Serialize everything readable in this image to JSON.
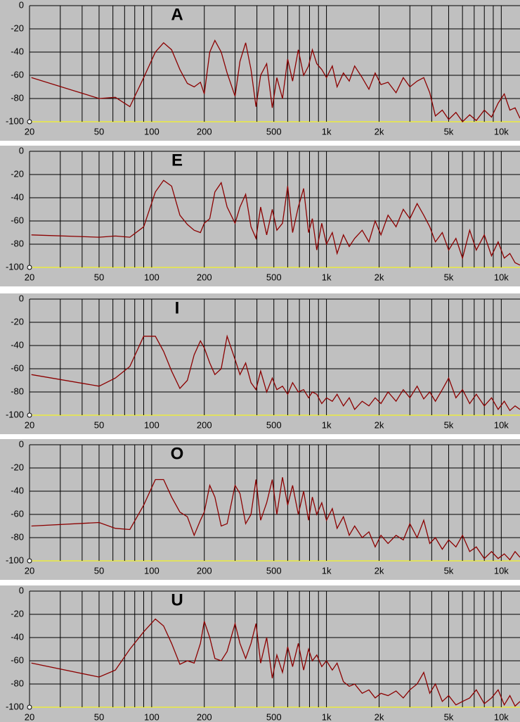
{
  "chart_data": [
    {
      "type": "line",
      "title": "A",
      "color": "#8b0000",
      "xscale": "log",
      "grid": true,
      "xlim": [
        20,
        12800
      ],
      "ylim": [
        -100,
        0
      ],
      "xticks": [
        20,
        50,
        100,
        200,
        500,
        {
          "value": 1000,
          "label": "1k"
        },
        {
          "value": 2000,
          "label": "2k"
        },
        {
          "value": 5000,
          "label": "5k"
        },
        {
          "value": 10000,
          "label": "10k"
        }
      ],
      "xminor_ticks": [
        30,
        40,
        60,
        70,
        80,
        90,
        300,
        400,
        600,
        700,
        800,
        900,
        3000,
        4000,
        6000,
        7000,
        8000,
        9000
      ],
      "yticks": [
        0,
        -20,
        -40,
        -60,
        -80,
        -100
      ],
      "x": [
        20.5,
        50,
        62,
        75,
        90,
        105,
        117,
        130,
        145,
        160,
        175,
        190,
        200,
        215,
        230,
        250,
        270,
        300,
        320,
        345,
        370,
        395,
        420,
        455,
        490,
        520,
        560,
        600,
        640,
        690,
        740,
        790,
        830,
        880,
        940,
        1000,
        1080,
        1150,
        1250,
        1350,
        1450,
        1600,
        1750,
        1900,
        2050,
        2250,
        2500,
        2750,
        3000,
        3300,
        3600,
        3900,
        4200,
        4600,
        5000,
        5500,
        6000,
        6600,
        7200,
        8000,
        8800,
        9600,
        10400,
        11200,
        12000,
        12800
      ],
      "values": [
        -62,
        -80,
        -79,
        -87,
        -62,
        -40,
        -32,
        -38,
        -55,
        -67,
        -70,
        -66,
        -76,
        -40,
        -30,
        -40,
        -58,
        -78,
        -48,
        -32,
        -55,
        -87,
        -60,
        -50,
        -88,
        -62,
        -80,
        -46,
        -65,
        -38,
        -60,
        -52,
        -38,
        -50,
        -55,
        -62,
        -52,
        -70,
        -58,
        -65,
        -52,
        -62,
        -72,
        -58,
        -68,
        -66,
        -75,
        -62,
        -70,
        -65,
        -62,
        -75,
        -95,
        -90,
        -98,
        -92,
        -100,
        -94,
        -99,
        -90,
        -96,
        -84,
        -76,
        -90,
        -88,
        -97
      ]
    },
    {
      "type": "line",
      "title": "E",
      "color": "#8b0000",
      "xscale": "log",
      "grid": true,
      "xlim": [
        20,
        12800
      ],
      "ylim": [
        -100,
        0
      ],
      "xticks": [
        20,
        50,
        100,
        200,
        500,
        {
          "value": 1000,
          "label": "1k"
        },
        {
          "value": 2000,
          "label": "2k"
        },
        {
          "value": 5000,
          "label": "5k"
        },
        {
          "value": 10000,
          "label": "10k"
        }
      ],
      "xminor_ticks": [
        30,
        40,
        60,
        70,
        80,
        90,
        300,
        400,
        600,
        700,
        800,
        900,
        3000,
        4000,
        6000,
        7000,
        8000,
        9000
      ],
      "yticks": [
        0,
        -20,
        -40,
        -60,
        -80,
        -100
      ],
      "x": [
        20.5,
        50,
        62,
        75,
        90,
        105,
        117,
        130,
        145,
        160,
        175,
        190,
        200,
        215,
        230,
        250,
        270,
        300,
        320,
        345,
        370,
        395,
        420,
        455,
        490,
        520,
        560,
        600,
        640,
        690,
        740,
        790,
        830,
        880,
        940,
        1000,
        1080,
        1150,
        1250,
        1350,
        1450,
        1600,
        1750,
        1900,
        2050,
        2250,
        2500,
        2750,
        3000,
        3300,
        3600,
        3900,
        4200,
        4600,
        5000,
        5500,
        6000,
        6600,
        7200,
        8000,
        8800,
        9600,
        10400,
        11200,
        12000,
        12800
      ],
      "values": [
        -72,
        -74,
        -73,
        -74,
        -65,
        -35,
        -25,
        -30,
        -55,
        -63,
        -68,
        -70,
        -62,
        -58,
        -35,
        -27,
        -48,
        -62,
        -48,
        -37,
        -65,
        -75,
        -48,
        -72,
        -50,
        -68,
        -62,
        -30,
        -70,
        -48,
        -32,
        -70,
        -58,
        -85,
        -62,
        -80,
        -70,
        -88,
        -72,
        -82,
        -75,
        -68,
        -78,
        -60,
        -72,
        -55,
        -65,
        -50,
        -58,
        -45,
        -55,
        -65,
        -78,
        -70,
        -85,
        -75,
        -92,
        -68,
        -85,
        -72,
        -90,
        -78,
        -92,
        -88,
        -96,
        -98
      ]
    },
    {
      "type": "line",
      "title": "I",
      "color": "#8b0000",
      "xscale": "log",
      "grid": true,
      "xlim": [
        20,
        12800
      ],
      "ylim": [
        -100,
        0
      ],
      "xticks": [
        20,
        50,
        100,
        200,
        500,
        {
          "value": 1000,
          "label": "1k"
        },
        {
          "value": 2000,
          "label": "2k"
        },
        {
          "value": 5000,
          "label": "5k"
        },
        {
          "value": 10000,
          "label": "10k"
        }
      ],
      "xminor_ticks": [
        30,
        40,
        60,
        70,
        80,
        90,
        300,
        400,
        600,
        700,
        800,
        900,
        3000,
        4000,
        6000,
        7000,
        8000,
        9000
      ],
      "yticks": [
        0,
        -20,
        -40,
        -60,
        -80,
        -100
      ],
      "x": [
        20.5,
        50,
        62,
        75,
        90,
        105,
        117,
        130,
        145,
        160,
        175,
        190,
        200,
        215,
        230,
        250,
        270,
        300,
        320,
        345,
        370,
        395,
        420,
        455,
        490,
        520,
        560,
        600,
        640,
        690,
        740,
        790,
        830,
        880,
        940,
        1000,
        1080,
        1150,
        1250,
        1350,
        1450,
        1600,
        1750,
        1900,
        2050,
        2250,
        2500,
        2750,
        3000,
        3300,
        3600,
        3900,
        4200,
        4600,
        5000,
        5500,
        6000,
        6600,
        7200,
        8000,
        8800,
        9600,
        10400,
        11200,
        12000,
        12800
      ],
      "values": [
        -65,
        -75,
        -68,
        -58,
        -32,
        -32,
        -45,
        -62,
        -77,
        -70,
        -48,
        -36,
        -42,
        -55,
        -65,
        -60,
        -32,
        -52,
        -65,
        -55,
        -72,
        -78,
        -62,
        -80,
        -68,
        -78,
        -75,
        -82,
        -72,
        -80,
        -78,
        -85,
        -80,
        -82,
        -90,
        -85,
        -88,
        -82,
        -92,
        -85,
        -95,
        -88,
        -92,
        -85,
        -90,
        -80,
        -88,
        -78,
        -85,
        -75,
        -86,
        -80,
        -88,
        -78,
        -68,
        -85,
        -78,
        -90,
        -82,
        -92,
        -85,
        -95,
        -88,
        -96,
        -92,
        -95
      ]
    },
    {
      "type": "line",
      "title": "O",
      "color": "#8b0000",
      "xscale": "log",
      "grid": true,
      "xlim": [
        20,
        12800
      ],
      "ylim": [
        -100,
        0
      ],
      "xticks": [
        20,
        50,
        100,
        200,
        500,
        {
          "value": 1000,
          "label": "1k"
        },
        {
          "value": 2000,
          "label": "2k"
        },
        {
          "value": 5000,
          "label": "5k"
        },
        {
          "value": 10000,
          "label": "10k"
        }
      ],
      "xminor_ticks": [
        30,
        40,
        60,
        70,
        80,
        90,
        300,
        400,
        600,
        700,
        800,
        900,
        3000,
        4000,
        6000,
        7000,
        8000,
        9000
      ],
      "yticks": [
        0,
        -20,
        -40,
        -60,
        -80,
        -100
      ],
      "x": [
        20.5,
        50,
        62,
        75,
        90,
        105,
        117,
        130,
        145,
        160,
        175,
        190,
        200,
        215,
        230,
        250,
        270,
        300,
        320,
        345,
        370,
        395,
        420,
        455,
        490,
        520,
        560,
        600,
        640,
        690,
        740,
        790,
        830,
        880,
        940,
        1000,
        1080,
        1150,
        1250,
        1350,
        1450,
        1600,
        1750,
        1900,
        2050,
        2250,
        2500,
        2750,
        3000,
        3300,
        3600,
        3900,
        4200,
        4600,
        5000,
        5500,
        6000,
        6600,
        7200,
        8000,
        8800,
        9600,
        10400,
        11200,
        12000,
        12800
      ],
      "values": [
        -70,
        -67,
        -72,
        -73,
        -52,
        -30,
        -30,
        -45,
        -58,
        -62,
        -78,
        -65,
        -58,
        -35,
        -45,
        -70,
        -68,
        -35,
        -42,
        -68,
        -60,
        -30,
        -65,
        -50,
        -30,
        -60,
        -28,
        -52,
        -35,
        -60,
        -40,
        -65,
        -45,
        -60,
        -50,
        -65,
        -55,
        -72,
        -62,
        -78,
        -70,
        -80,
        -75,
        -88,
        -78,
        -85,
        -78,
        -82,
        -68,
        -80,
        -65,
        -85,
        -80,
        -90,
        -82,
        -88,
        -78,
        -92,
        -88,
        -98,
        -92,
        -98,
        -94,
        -99,
        -92,
        -97
      ]
    },
    {
      "type": "line",
      "title": "U",
      "color": "#8b0000",
      "xscale": "log",
      "grid": true,
      "xlim": [
        20,
        12800
      ],
      "ylim": [
        -100,
        0
      ],
      "xticks": [
        20,
        50,
        100,
        200,
        500,
        {
          "value": 1000,
          "label": "1k"
        },
        {
          "value": 2000,
          "label": "2k"
        },
        {
          "value": 5000,
          "label": "5k"
        },
        {
          "value": 10000,
          "label": "10k"
        }
      ],
      "xminor_ticks": [
        30,
        40,
        60,
        70,
        80,
        90,
        300,
        400,
        600,
        700,
        800,
        900,
        3000,
        4000,
        6000,
        7000,
        8000,
        9000
      ],
      "yticks": [
        0,
        -20,
        -40,
        -60,
        -80,
        -100
      ],
      "x": [
        20.5,
        50,
        62,
        75,
        90,
        105,
        117,
        130,
        145,
        160,
        175,
        190,
        200,
        215,
        230,
        250,
        270,
        300,
        320,
        345,
        370,
        395,
        420,
        455,
        490,
        520,
        560,
        600,
        640,
        690,
        740,
        790,
        830,
        880,
        940,
        1000,
        1080,
        1150,
        1250,
        1350,
        1450,
        1600,
        1750,
        1900,
        2050,
        2250,
        2500,
        2750,
        3000,
        3300,
        3600,
        3900,
        4200,
        4600,
        5000,
        5500,
        6000,
        6600,
        7200,
        8000,
        8800,
        9600,
        10400,
        11200,
        12000,
        12800
      ],
      "values": [
        -62,
        -74,
        -68,
        -50,
        -35,
        -24,
        -30,
        -45,
        -63,
        -60,
        -62,
        -45,
        -26,
        -40,
        -58,
        -60,
        -52,
        -28,
        -45,
        -58,
        -45,
        -28,
        -62,
        -40,
        -75,
        -55,
        -70,
        -48,
        -65,
        -45,
        -68,
        -50,
        -60,
        -55,
        -65,
        -60,
        -68,
        -62,
        -78,
        -82,
        -80,
        -88,
        -85,
        -92,
        -88,
        -90,
        -86,
        -92,
        -85,
        -80,
        -70,
        -88,
        -80,
        -95,
        -90,
        -98,
        -95,
        -92,
        -85,
        -97,
        -92,
        -85,
        -98,
        -90,
        -99,
        -95
      ]
    }
  ]
}
